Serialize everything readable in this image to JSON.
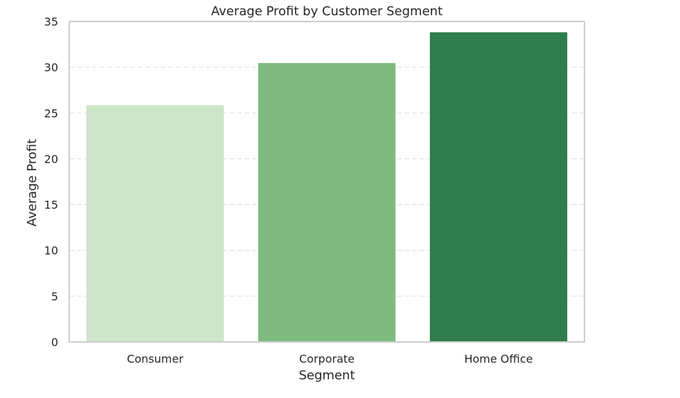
{
  "chart_data": {
    "type": "bar",
    "title": "Average Profit by Customer Segment",
    "xlabel": "Segment",
    "ylabel": "Average Profit",
    "categories": [
      "Consumer",
      "Corporate",
      "Home Office"
    ],
    "values": [
      25.84,
      30.46,
      33.82
    ],
    "colors": [
      "#cce5c8",
      "#7fbb81",
      "#2e7d4b"
    ],
    "ylim": [
      0,
      35
    ],
    "yticks": [
      0,
      5,
      10,
      15,
      20,
      25,
      30,
      35
    ],
    "ytick_labels": [
      "0",
      "5",
      "10",
      "15",
      "20",
      "25",
      "30",
      "35"
    ],
    "grid": "y-dashed",
    "legend": "none",
    "frame_color": "#cccccc",
    "grid_color": "#e3e3e3"
  }
}
